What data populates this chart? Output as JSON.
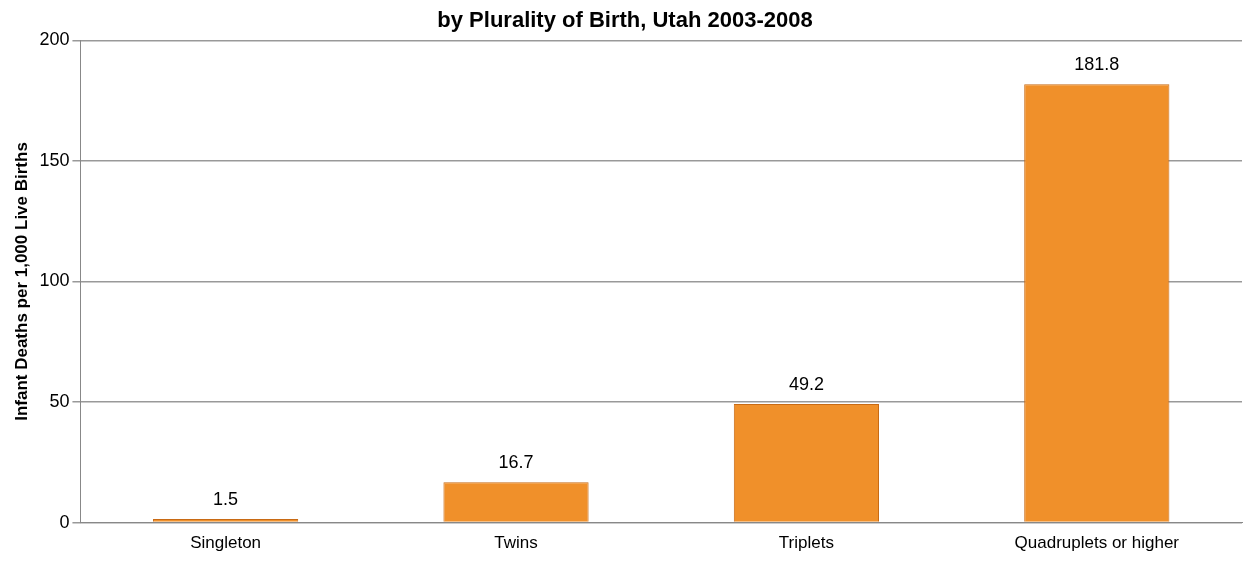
{
  "chart_data": {
    "type": "bar",
    "title": "by Plurality of Birth, Utah 2003-2008",
    "ylabel": "Infant Deaths per 1,000 Live Births",
    "categories": [
      "Singleton",
      "Twins",
      "Triplets",
      "Quadruplets or higher"
    ],
    "values": [
      1.5,
      16.7,
      49.2,
      181.8
    ],
    "color": "#f0902a",
    "ylim": [
      0,
      200
    ],
    "yticks": [
      0,
      50,
      100,
      150,
      200
    ],
    "grid": "y",
    "data_labels": true
  }
}
